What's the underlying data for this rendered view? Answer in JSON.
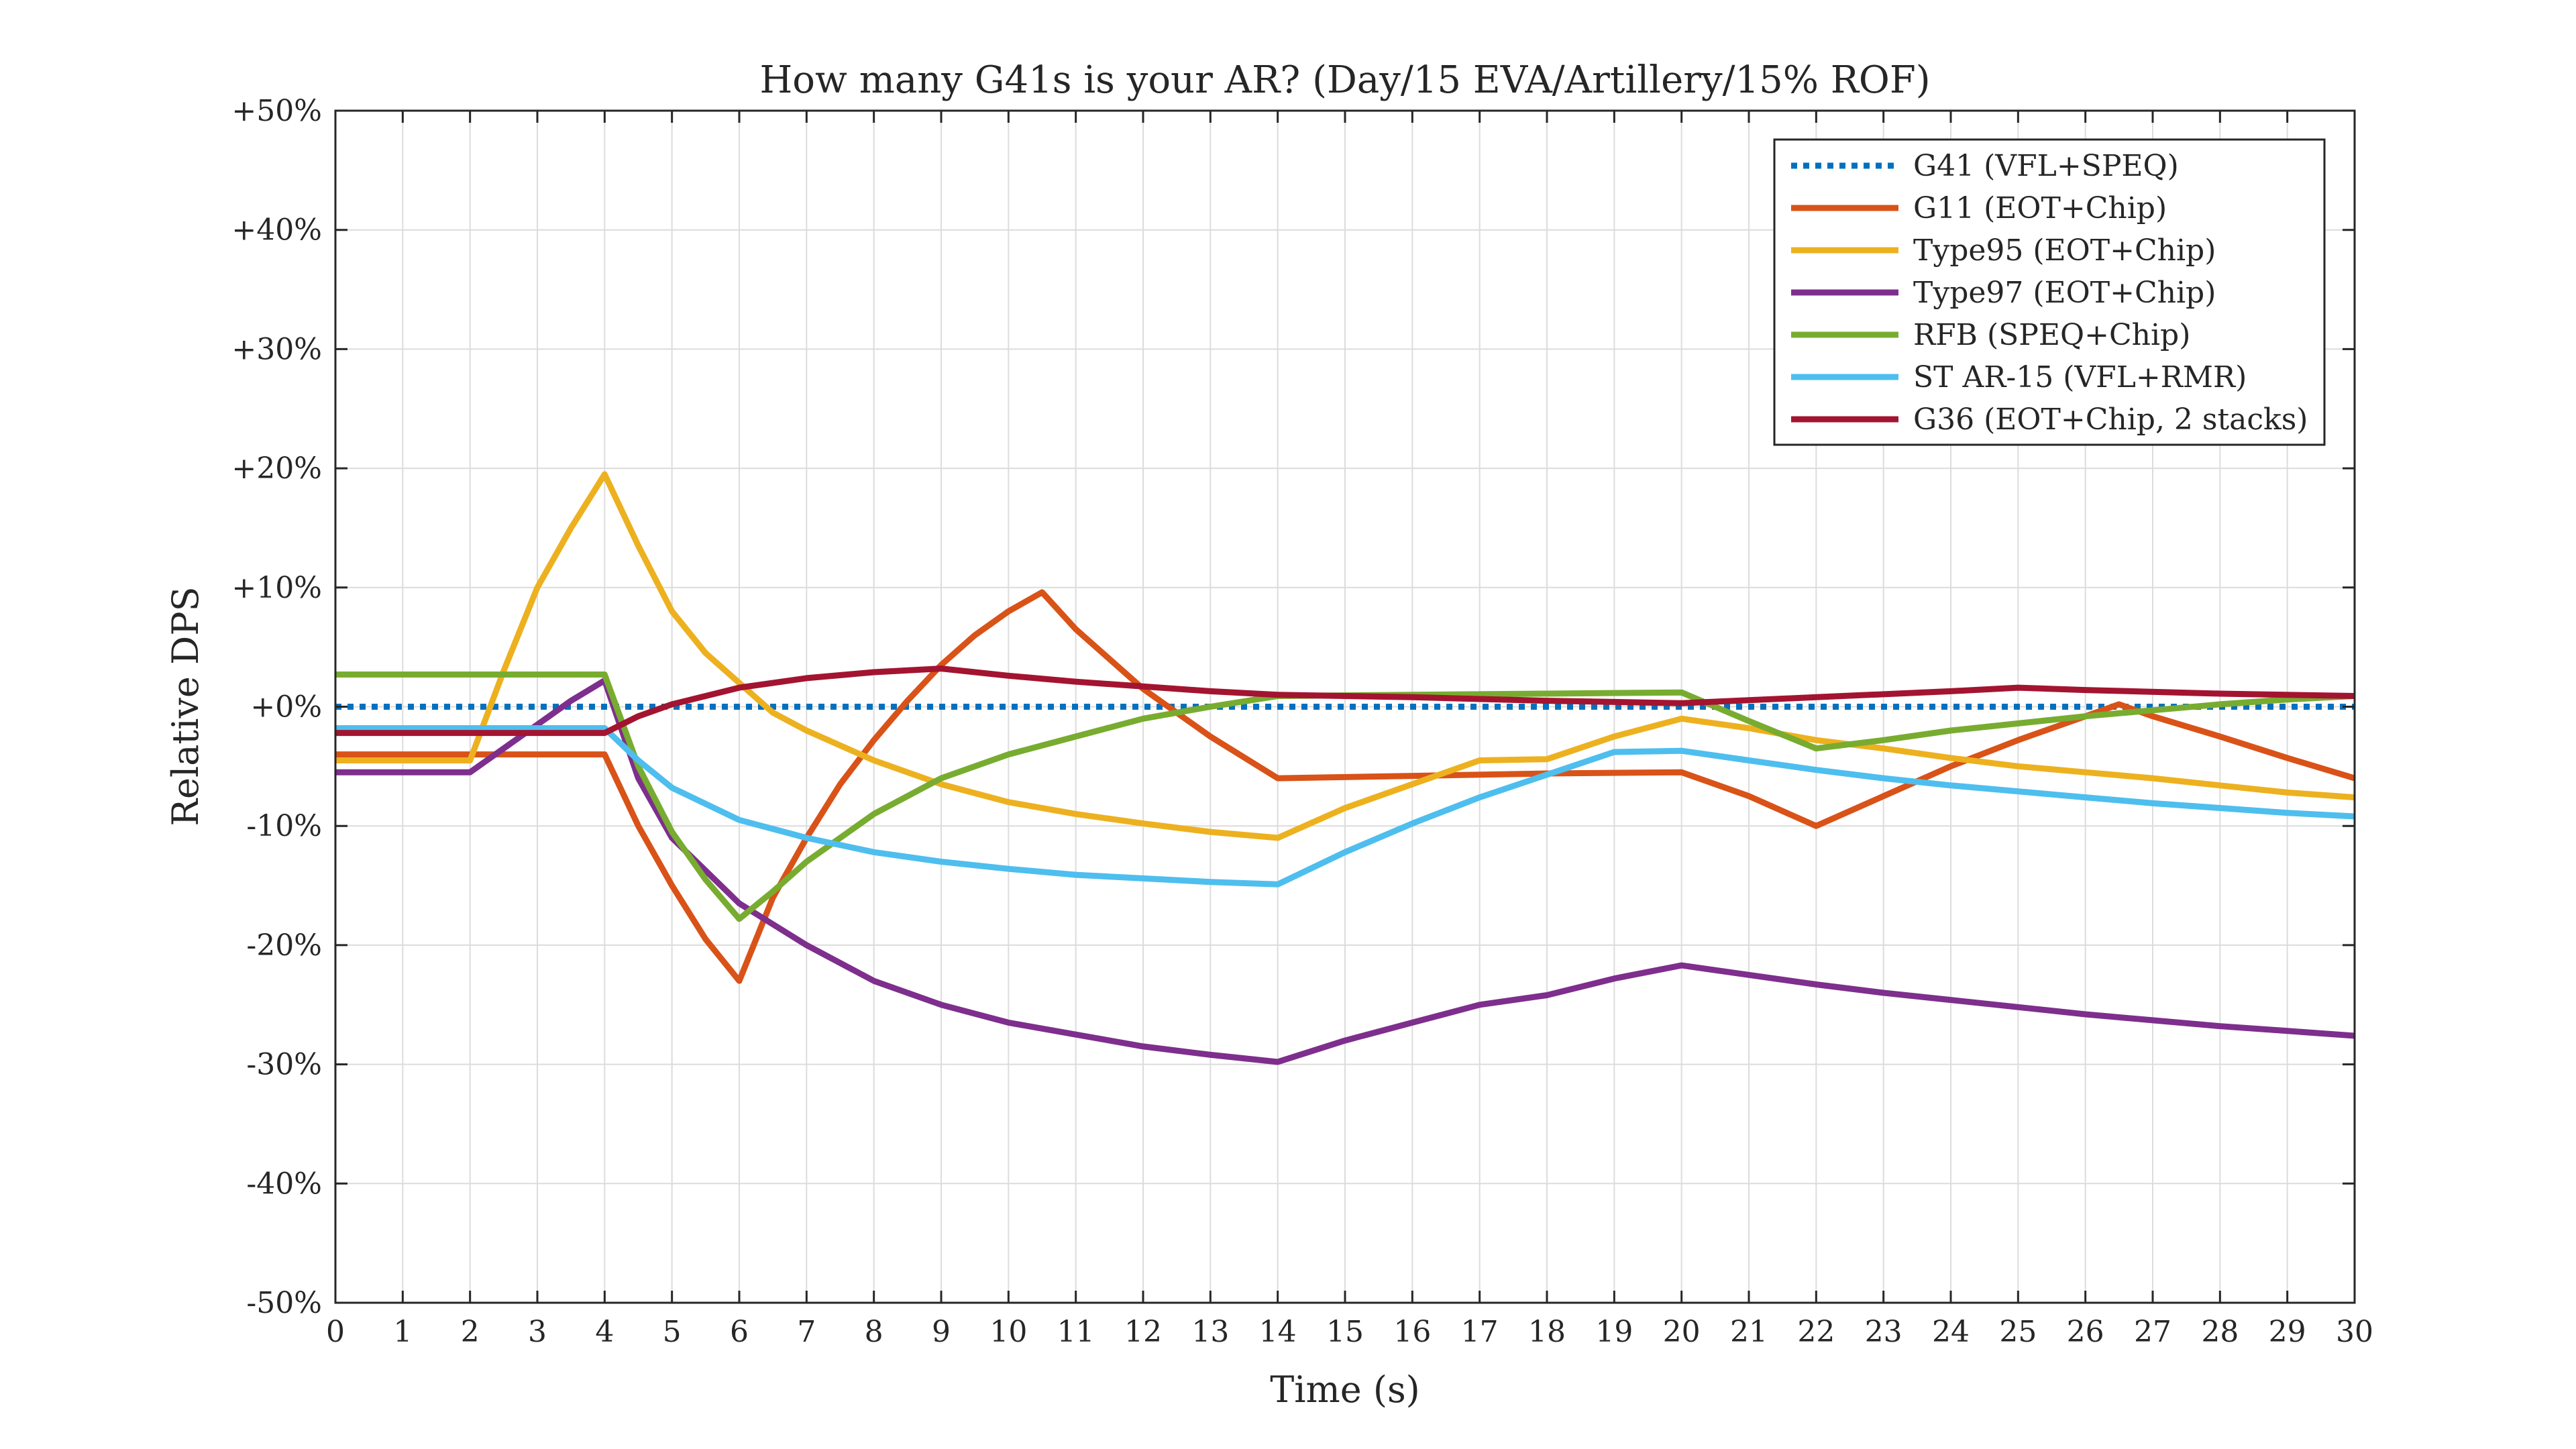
{
  "chart_data": {
    "type": "line",
    "title": "How many G41s is your AR? (Day/15 EVA/Artillery/15% ROF)",
    "xlabel": "Time (s)",
    "ylabel": "Relative DPS",
    "xlim": [
      0,
      30
    ],
    "ylim": [
      -50,
      50
    ],
    "xticks": [
      0,
      1,
      2,
      3,
      4,
      5,
      6,
      7,
      8,
      9,
      10,
      11,
      12,
      13,
      14,
      15,
      16,
      17,
      18,
      19,
      20,
      21,
      22,
      23,
      24,
      25,
      26,
      27,
      28,
      29,
      30
    ],
    "xtick_labels": [
      "0",
      "1",
      "2",
      "3",
      "4",
      "5",
      "6",
      "7",
      "8",
      "9",
      "10",
      "11",
      "12",
      "13",
      "14",
      "15",
      "16",
      "17",
      "18",
      "19",
      "20",
      "21",
      "22",
      "23",
      "24",
      "25",
      "26",
      "27",
      "28",
      "29",
      "30"
    ],
    "yticks": [
      -50,
      -40,
      -30,
      -20,
      -10,
      0,
      10,
      20,
      30,
      40,
      50
    ],
    "ytick_labels": [
      "-50%",
      "-40%",
      "-30%",
      "-20%",
      "-10%",
      "+0%",
      "+10%",
      "+20%",
      "+30%",
      "+40%",
      "+50%"
    ],
    "grid": true,
    "legend_position": "top-right",
    "series": [
      {
        "name": "G41 (VFL+SPEQ)",
        "color": "#0072BD",
        "dash": "dotted",
        "x": [
          0,
          30
        ],
        "y": [
          0,
          0
        ]
      },
      {
        "name": "G11 (EOT+Chip)",
        "color": "#D95319",
        "dash": "solid",
        "x": [
          0,
          2,
          4,
          4.5,
          5,
          5.5,
          6,
          6.5,
          7,
          7.5,
          8,
          8.5,
          9,
          9.5,
          10,
          10.5,
          11,
          12,
          13,
          14,
          16,
          18,
          20,
          21,
          22,
          23,
          24,
          25,
          26,
          26.5,
          27,
          28,
          29,
          30
        ],
        "y": [
          -4,
          -4,
          -4,
          -10,
          -15,
          -19.5,
          -23,
          -16,
          -11,
          -6.5,
          -2.8,
          0.5,
          3.5,
          6,
          8,
          9.6,
          6.5,
          1.5,
          -2.5,
          -6,
          -5.8,
          -5.6,
          -5.5,
          -7.5,
          -10,
          -7.5,
          -5,
          -2.8,
          -0.8,
          0.2,
          -0.8,
          -2.5,
          -4.3,
          -6
        ]
      },
      {
        "name": "Type95 (EOT+Chip)",
        "color": "#EDB120",
        "dash": "solid",
        "x": [
          0,
          2,
          2.5,
          3,
          3.5,
          4,
          4.5,
          5,
          5.5,
          6,
          6.5,
          7,
          8,
          9,
          10,
          11,
          12,
          13,
          14,
          15,
          16,
          17,
          18,
          19,
          20,
          21,
          22,
          23,
          24,
          25,
          26,
          27,
          28,
          29,
          30
        ],
        "y": [
          -4.5,
          -4.5,
          3,
          10,
          15,
          19.5,
          13.5,
          8,
          4.5,
          2,
          -0.5,
          -2,
          -4.5,
          -6.5,
          -8,
          -9,
          -9.8,
          -10.5,
          -11,
          -8.5,
          -6.5,
          -4.5,
          -4.4,
          -2.5,
          -1,
          -1.8,
          -2.8,
          -3.5,
          -4.3,
          -5,
          -5.5,
          -6,
          -6.6,
          -7.2,
          -7.6
        ]
      },
      {
        "name": "Type97 (EOT+Chip)",
        "color": "#7E2F8E",
        "dash": "solid",
        "x": [
          0,
          2,
          2.5,
          3,
          3.5,
          4,
          4.5,
          5,
          6,
          7,
          8,
          9,
          10,
          11,
          12,
          13,
          14,
          15,
          16,
          17,
          18,
          19,
          20,
          21,
          22,
          23,
          24,
          25,
          26,
          27,
          28,
          29,
          30
        ],
        "y": [
          -5.5,
          -5.5,
          -3.5,
          -1.5,
          0.5,
          2.2,
          -6,
          -11,
          -16.5,
          -20,
          -23,
          -25,
          -26.5,
          -27.5,
          -28.5,
          -29.2,
          -29.8,
          -28,
          -26.5,
          -25,
          -24.2,
          -22.8,
          -21.7,
          -22.5,
          -23.3,
          -24,
          -24.6,
          -25.2,
          -25.8,
          -26.3,
          -26.8,
          -27.2,
          -27.6
        ]
      },
      {
        "name": "RFB (SPEQ+Chip)",
        "color": "#77AC30",
        "dash": "solid",
        "x": [
          0,
          2,
          4,
          4.5,
          5,
          5.5,
          6,
          6.5,
          7,
          8,
          9,
          10,
          11,
          12,
          13,
          14,
          16,
          18,
          20,
          21,
          22,
          23,
          24,
          25,
          26,
          27,
          28,
          29,
          30
        ],
        "y": [
          2.7,
          2.7,
          2.7,
          -5,
          -10.5,
          -14.5,
          -17.8,
          -15.5,
          -13,
          -9,
          -6,
          -4,
          -2.5,
          -1,
          0,
          0.9,
          1,
          1.1,
          1.2,
          -1.2,
          -3.5,
          -2.8,
          -2,
          -1.4,
          -0.8,
          -0.3,
          0.2,
          0.6,
          0.9
        ]
      },
      {
        "name": "ST AR-15 (VFL+RMR)",
        "color": "#4DBEEE",
        "dash": "solid",
        "x": [
          0,
          2,
          4,
          4.5,
          5,
          6,
          7,
          8,
          9,
          10,
          11,
          12,
          13,
          14,
          15,
          16,
          17,
          18,
          19,
          20,
          21,
          22,
          23,
          24,
          25,
          26,
          27,
          28,
          29,
          30
        ],
        "y": [
          -1.8,
          -1.8,
          -1.8,
          -4.5,
          -6.8,
          -9.5,
          -11,
          -12.2,
          -13,
          -13.6,
          -14.1,
          -14.4,
          -14.7,
          -14.9,
          -12.2,
          -9.8,
          -7.6,
          -5.7,
          -3.8,
          -3.7,
          -4.5,
          -5.3,
          -6,
          -6.6,
          -7.1,
          -7.6,
          -8.1,
          -8.5,
          -8.9,
          -9.2
        ]
      },
      {
        "name": "G36 (EOT+Chip, 2 stacks)",
        "color": "#A2142F",
        "dash": "solid",
        "x": [
          0,
          2,
          4,
          4.5,
          5,
          6,
          7,
          8,
          9,
          10,
          11,
          12,
          13,
          14,
          16,
          18,
          20,
          22,
          24,
          25,
          26,
          28,
          30
        ],
        "y": [
          -2.2,
          -2.2,
          -2.2,
          -0.8,
          0.2,
          1.6,
          2.4,
          2.9,
          3.2,
          2.6,
          2.1,
          1.7,
          1.3,
          1,
          0.8,
          0.5,
          0.3,
          0.8,
          1.3,
          1.6,
          1.4,
          1.1,
          0.9
        ]
      }
    ]
  }
}
